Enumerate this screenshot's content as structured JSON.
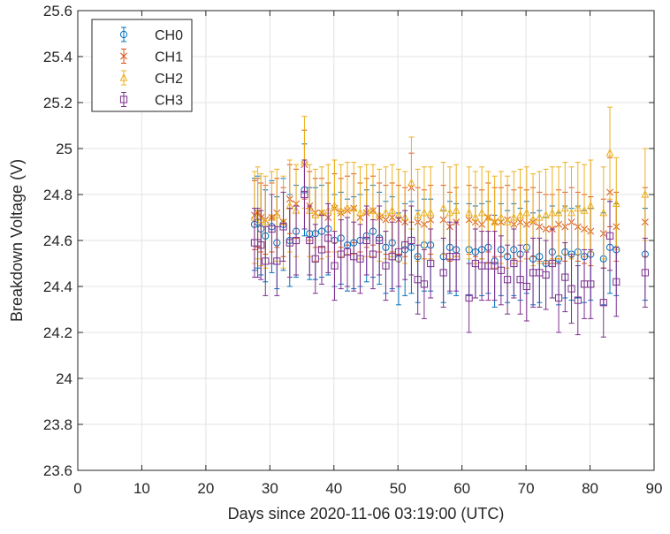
{
  "chart_data": {
    "type": "scatter",
    "subtype": "errorbar",
    "title": "",
    "xlabel": "Days since 2020-11-06 03:19:00 (UTC)",
    "ylabel": "Breakdown Voltage (V)",
    "xlim": [
      0,
      90
    ],
    "ylim": [
      23.6,
      25.6
    ],
    "x_ticks": [
      0,
      10,
      20,
      30,
      40,
      50,
      60,
      70,
      80,
      90
    ],
    "x_tick_labels": [
      "0",
      "10",
      "20",
      "30",
      "40",
      "50",
      "60",
      "70",
      "80",
      "90"
    ],
    "y_ticks": [
      23.6,
      23.8,
      24.0,
      24.2,
      24.4,
      24.6,
      24.8,
      25.0,
      25.2,
      25.4,
      25.6
    ],
    "y_tick_labels": [
      "23.6",
      "23.8",
      "24",
      "24.2",
      "24.4",
      "24.6",
      "24.8",
      "25",
      "25.2",
      "25.4",
      "25.6"
    ],
    "grid": true,
    "legend_position": "top-left",
    "error_bar_halfwidth_approx": [
      0.2,
      0.15,
      0.2,
      0.15
    ],
    "x": [
      27.6,
      28.1,
      28.6,
      29.3,
      30.3,
      31.1,
      32.1,
      33.1,
      34.1,
      35.4,
      36.2,
      37.1,
      38.1,
      39.1,
      40.1,
      41.1,
      42.1,
      43.1,
      44.1,
      45.1,
      46.1,
      47.1,
      48.1,
      49.1,
      50.1,
      51.1,
      52.1,
      53.1,
      54.1,
      55.1,
      57.1,
      58.1,
      59.1,
      61.1,
      62.1,
      63.1,
      64.1,
      65.1,
      66.1,
      67.1,
      68.1,
      69.1,
      70.1,
      71.1,
      72.1,
      73.1,
      74.1,
      75.1,
      76.1,
      77.1,
      78.1,
      79.1,
      80.1,
      82.1,
      83.1,
      84.1,
      88.6
    ],
    "series": [
      {
        "name": "CH0",
        "color": "#0072BD",
        "marker": "circle",
        "values": [
          24.67,
          24.68,
          24.65,
          24.62,
          24.66,
          24.59,
          24.67,
          24.6,
          24.64,
          24.82,
          24.63,
          24.63,
          24.64,
          24.65,
          24.6,
          24.61,
          24.58,
          24.59,
          24.6,
          24.62,
          24.64,
          24.61,
          24.57,
          24.59,
          24.52,
          24.56,
          24.57,
          24.53,
          24.58,
          24.58,
          24.53,
          24.57,
          24.56,
          24.56,
          24.55,
          24.56,
          24.57,
          24.51,
          24.56,
          24.53,
          24.56,
          24.54,
          24.57,
          24.52,
          24.53,
          24.5,
          24.55,
          24.52,
          24.55,
          24.54,
          24.55,
          24.53,
          24.54,
          24.52,
          24.57,
          24.56,
          24.54
        ]
      },
      {
        "name": "CH1",
        "color": "#D95319",
        "marker": "x",
        "values": [
          24.71,
          24.72,
          24.7,
          24.69,
          24.7,
          24.72,
          24.68,
          24.78,
          24.76,
          24.93,
          24.75,
          24.72,
          24.72,
          24.7,
          24.74,
          24.72,
          24.73,
          24.74,
          24.7,
          24.72,
          24.73,
          24.7,
          24.69,
          24.7,
          24.69,
          24.68,
          24.83,
          24.68,
          24.67,
          24.69,
          24.69,
          24.66,
          24.68,
          24.69,
          24.68,
          24.67,
          24.7,
          24.68,
          24.68,
          24.69,
          24.67,
          24.68,
          24.67,
          24.68,
          24.66,
          24.65,
          24.65,
          24.67,
          24.66,
          24.68,
          24.66,
          24.65,
          24.64,
          24.63,
          24.81,
          24.66,
          24.68
        ]
      },
      {
        "name": "CH2",
        "color": "#EDB120",
        "marker": "triangle",
        "values": [
          24.7,
          24.72,
          24.69,
          24.68,
          24.7,
          24.71,
          24.68,
          24.75,
          24.73,
          24.94,
          24.73,
          24.71,
          24.72,
          24.73,
          24.75,
          24.73,
          24.74,
          24.74,
          24.72,
          24.73,
          24.73,
          24.71,
          24.72,
          24.73,
          24.71,
          24.7,
          24.85,
          24.71,
          24.72,
          24.72,
          24.74,
          24.72,
          24.73,
          24.72,
          24.7,
          24.72,
          24.7,
          24.68,
          24.7,
          24.68,
          24.7,
          24.71,
          24.72,
          24.69,
          24.7,
          24.71,
          24.72,
          24.72,
          24.74,
          24.72,
          24.74,
          24.73,
          24.75,
          24.72,
          24.98,
          24.76,
          24.8
        ]
      },
      {
        "name": "CH3",
        "color": "#7E2F8E",
        "marker": "square",
        "values": [
          24.59,
          24.59,
          24.58,
          24.51,
          24.65,
          24.51,
          24.66,
          24.59,
          24.6,
          24.8,
          24.6,
          24.52,
          24.56,
          24.61,
          24.49,
          24.54,
          24.55,
          24.53,
          24.52,
          24.6,
          24.54,
          24.6,
          24.49,
          24.53,
          24.55,
          24.58,
          24.6,
          24.43,
          24.41,
          24.5,
          24.46,
          24.53,
          24.53,
          24.35,
          24.5,
          24.49,
          24.49,
          24.49,
          24.47,
          24.43,
          24.5,
          24.43,
          24.4,
          24.46,
          24.46,
          24.45,
          24.5,
          24.35,
          24.44,
          24.39,
          24.34,
          24.41,
          24.41,
          24.33,
          24.62,
          24.42,
          24.46
        ]
      }
    ]
  }
}
